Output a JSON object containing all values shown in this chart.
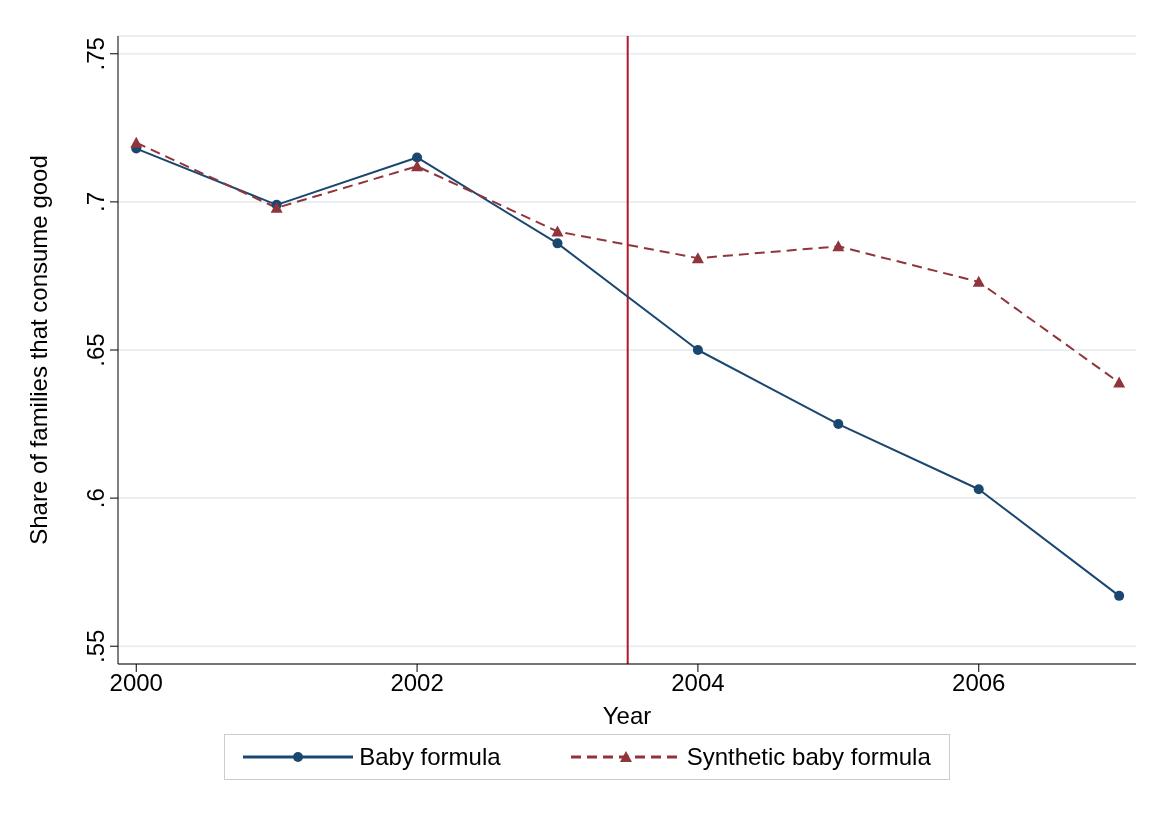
{
  "chart_data": {
    "type": "line",
    "xlabel": "Year",
    "ylabel": "Share of families that consume good",
    "x": [
      2000,
      2001,
      2002,
      2003,
      2004,
      2005,
      2006,
      2007
    ],
    "series": [
      {
        "name": "Baby formula",
        "color": "#1a476f",
        "marker": "circle",
        "line_style": "solid",
        "values": [
          0.718,
          0.699,
          0.715,
          0.686,
          0.65,
          0.625,
          0.603,
          0.567
        ]
      },
      {
        "name": "Synthetic baby formula",
        "color": "#90353b",
        "marker": "triangle",
        "line_style": "dashed",
        "values": [
          0.72,
          0.698,
          0.712,
          0.69,
          0.681,
          0.685,
          0.673,
          0.639
        ]
      }
    ],
    "xlim": [
      1999.87,
      2007.12
    ],
    "xticks": [
      2000,
      2002,
      2004,
      2006
    ],
    "ylim": [
      0.544,
      0.756
    ],
    "yticks": [
      {
        "value": 0.55,
        "label": ".55"
      },
      {
        "value": 0.6,
        "label": ".6"
      },
      {
        "value": 0.65,
        "label": ".65"
      },
      {
        "value": 0.7,
        "label": ".7"
      },
      {
        "value": 0.75,
        "label": ".75"
      }
    ],
    "ref_lines": [
      {
        "axis": "x",
        "value": 2003.5,
        "color": "#b2182b"
      }
    ],
    "grid": "y",
    "legend": "bottom"
  }
}
